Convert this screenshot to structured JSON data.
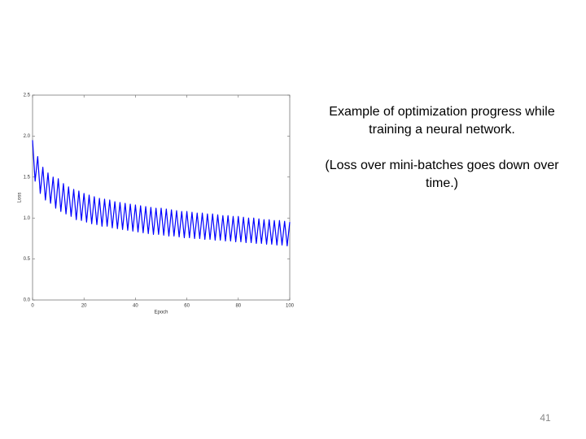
{
  "chart_data": {
    "type": "line",
    "xlabel": "Epoch",
    "ylabel": "Loss",
    "x": [
      0,
      1,
      2,
      3,
      4,
      5,
      6,
      7,
      8,
      9,
      10,
      11,
      12,
      13,
      14,
      15,
      16,
      17,
      18,
      19,
      20,
      21,
      22,
      23,
      24,
      25,
      26,
      27,
      28,
      29,
      30,
      31,
      32,
      33,
      34,
      35,
      36,
      37,
      38,
      39,
      40,
      41,
      42,
      43,
      44,
      45,
      46,
      47,
      48,
      49,
      50,
      51,
      52,
      53,
      54,
      55,
      56,
      57,
      58,
      59,
      60,
      61,
      62,
      63,
      64,
      65,
      66,
      67,
      68,
      69,
      70,
      71,
      72,
      73,
      74,
      75,
      76,
      77,
      78,
      79,
      80,
      81,
      82,
      83,
      84,
      85,
      86,
      87,
      88,
      89,
      90,
      91,
      92,
      93,
      94,
      95,
      96,
      97,
      98,
      99,
      100
    ],
    "values": [
      1.95,
      1.45,
      1.75,
      1.3,
      1.62,
      1.22,
      1.55,
      1.18,
      1.5,
      1.12,
      1.48,
      1.08,
      1.42,
      1.05,
      1.38,
      1.02,
      1.35,
      0.98,
      1.33,
      0.97,
      1.3,
      0.95,
      1.28,
      0.93,
      1.26,
      0.92,
      1.24,
      0.9,
      1.23,
      0.9,
      1.22,
      0.88,
      1.2,
      0.87,
      1.19,
      0.86,
      1.18,
      0.85,
      1.17,
      0.84,
      1.16,
      0.83,
      1.15,
      0.82,
      1.14,
      0.81,
      1.13,
      0.8,
      1.12,
      0.8,
      1.12,
      0.79,
      1.11,
      0.78,
      1.1,
      0.78,
      1.09,
      0.77,
      1.08,
      0.76,
      1.08,
      0.76,
      1.07,
      0.75,
      1.06,
      0.75,
      1.06,
      0.74,
      1.05,
      0.74,
      1.05,
      0.73,
      1.04,
      0.73,
      1.03,
      0.72,
      1.03,
      0.72,
      1.02,
      0.71,
      1.02,
      0.71,
      1.01,
      0.7,
      1.0,
      0.7,
      1.0,
      0.69,
      0.99,
      0.69,
      0.98,
      0.68,
      0.98,
      0.68,
      0.97,
      0.67,
      0.97,
      0.67,
      0.96,
      0.66,
      0.95
    ],
    "color": "#0000ff",
    "xlim": [
      0,
      100
    ],
    "xticks": [
      0,
      20,
      40,
      60,
      80,
      100
    ],
    "ylim": [
      0,
      2.5
    ],
    "yticks": [
      {
        "value": 0,
        "label": "0.0"
      },
      {
        "value": 0.5,
        "label": "0.5"
      },
      {
        "value": 1,
        "label": "1.0"
      },
      {
        "value": 1.5,
        "label": "1.5"
      },
      {
        "value": 2,
        "label": "2.0"
      },
      {
        "value": 2.5,
        "label": "2.5"
      }
    ]
  },
  "slide": {
    "caption": "Example of optimization progress while training a neural network.",
    "note": "(Loss over mini-batches goes down over time.)",
    "page_number": "41"
  }
}
